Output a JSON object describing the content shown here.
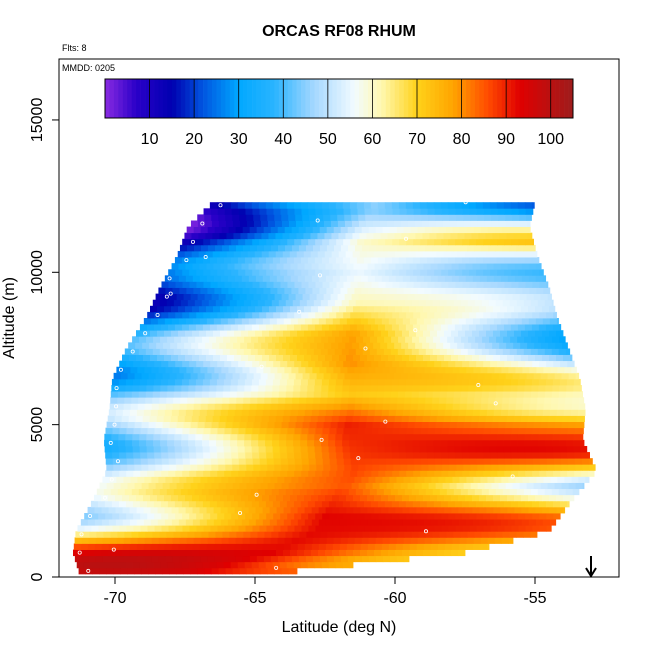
{
  "chart_data": {
    "type": "heatmap",
    "title": "ORCAS RF08 RHUM",
    "corner_labels": {
      "flights": "Flts: 8",
      "date": "MMDD: 0205"
    },
    "xlabel": "Latitude (deg N)",
    "ylabel": "Altitude (m)",
    "xlim": [
      -72,
      -52
    ],
    "ylim": [
      0,
      17000
    ],
    "x_ticks": [
      -70,
      -65,
      -60,
      -55
    ],
    "x_tick_labels": [
      "-70",
      "-65",
      "-60",
      "-55"
    ],
    "y_ticks": [
      0,
      5000,
      10000,
      15000
    ],
    "y_tick_labels": [
      "0",
      "5000",
      "10000",
      "15000"
    ],
    "colorbar": {
      "ticks": [
        10,
        20,
        30,
        40,
        50,
        60,
        70,
        80,
        90,
        100
      ],
      "tick_labels": [
        "10",
        "20",
        "30",
        "40",
        "50",
        "60",
        "70",
        "80",
        "90",
        "100"
      ],
      "range": [
        0,
        105
      ],
      "color_stops": [
        {
          "value": 0,
          "color": "#8a2be2"
        },
        {
          "value": 7,
          "color": "#2a00c8"
        },
        {
          "value": 15,
          "color": "#0000b0"
        },
        {
          "value": 22,
          "color": "#0055e0"
        },
        {
          "value": 30,
          "color": "#00a8ff"
        },
        {
          "value": 38,
          "color": "#2ab4ff"
        },
        {
          "value": 47,
          "color": "#a6d8ff"
        },
        {
          "value": 56,
          "color": "#f2fbff"
        },
        {
          "value": 62,
          "color": "#fff8b0"
        },
        {
          "value": 70,
          "color": "#ffd21a"
        },
        {
          "value": 78,
          "color": "#ffa500"
        },
        {
          "value": 86,
          "color": "#ff4a00"
        },
        {
          "value": 93,
          "color": "#e00000"
        },
        {
          "value": 105,
          "color": "#9e1c1c"
        }
      ]
    },
    "field": {
      "lat_range": [
        -72,
        -53
      ],
      "alt_range": [
        200,
        12300
      ],
      "cell_width_lat": 0.25,
      "cell_height_m": 200,
      "envelope": [
        {
          "alt": 200,
          "lat_min": -71.3,
          "lat_max": -63.5
        },
        {
          "alt": 800,
          "lat_min": -71.5,
          "lat_max": -57.5
        },
        {
          "alt": 1500,
          "lat_min": -71.4,
          "lat_max": -54.5
        },
        {
          "alt": 2500,
          "lat_min": -70.8,
          "lat_max": -53.7
        },
        {
          "alt": 3500,
          "lat_min": -70.3,
          "lat_max": -52.8
        },
        {
          "alt": 4500,
          "lat_min": -70.4,
          "lat_max": -53.3
        },
        {
          "alt": 5500,
          "lat_min": -70.2,
          "lat_max": -53.2
        },
        {
          "alt": 6500,
          "lat_min": -70.1,
          "lat_max": -53.4
        },
        {
          "alt": 7500,
          "lat_min": -69.6,
          "lat_max": -53.8
        },
        {
          "alt": 8500,
          "lat_min": -68.9,
          "lat_max": -54.2
        },
        {
          "alt": 9500,
          "lat_min": -68.4,
          "lat_max": -54.5
        },
        {
          "alt": 10500,
          "lat_min": -67.8,
          "lat_max": -54.9
        },
        {
          "alt": 11500,
          "lat_min": -67.4,
          "lat_max": -55.2
        },
        {
          "alt": 12300,
          "lat_min": -66.5,
          "lat_max": -55.0
        }
      ],
      "rhum_profile": [
        {
          "alt": 200,
          "west": 92,
          "mid": 95,
          "east": 90
        },
        {
          "alt": 1000,
          "west": 80,
          "mid": 92,
          "east": 78
        },
        {
          "alt": 2000,
          "west": 55,
          "mid": 93,
          "east": 72
        },
        {
          "alt": 3000,
          "west": 45,
          "mid": 85,
          "east": 58
        },
        {
          "alt": 4000,
          "west": 48,
          "mid": 88,
          "east": 78
        },
        {
          "alt": 5000,
          "west": 40,
          "mid": 90,
          "east": 85
        },
        {
          "alt": 6000,
          "west": 42,
          "mid": 72,
          "east": 60
        },
        {
          "alt": 7000,
          "west": 35,
          "mid": 80,
          "east": 45
        },
        {
          "alt": 8000,
          "west": 28,
          "mid": 78,
          "east": 40
        },
        {
          "alt": 9000,
          "west": 25,
          "mid": 62,
          "east": 38
        },
        {
          "alt": 10000,
          "west": 15,
          "mid": 55,
          "east": 50
        },
        {
          "alt": 11000,
          "west": 20,
          "mid": 60,
          "east": 65
        },
        {
          "alt": 12000,
          "west": 5,
          "mid": 45,
          "east": 30
        }
      ]
    },
    "flight_marker": {
      "lat": -53,
      "direction": "down"
    }
  }
}
